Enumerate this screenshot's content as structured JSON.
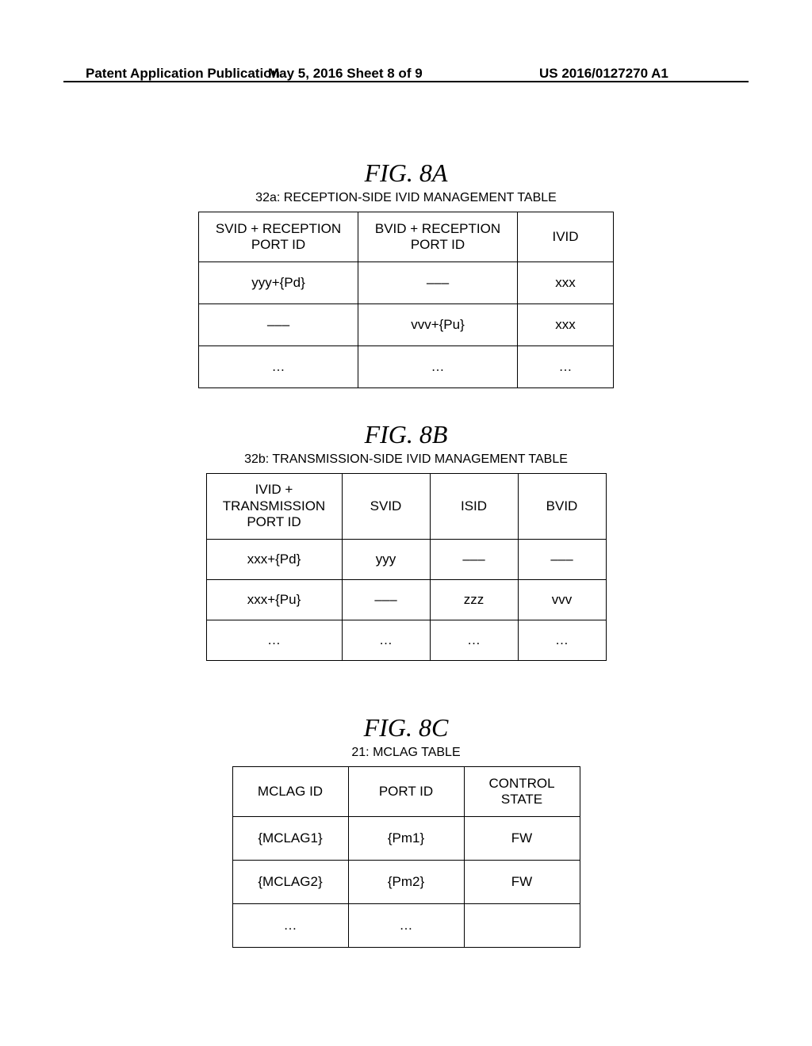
{
  "header": {
    "left": "Patent Application Publication",
    "center": "May 5, 2016  Sheet 8 of 9",
    "right": "US 2016/0127270 A1"
  },
  "figA": {
    "label": "FIG.  8A",
    "caption": "32a: RECEPTION-SIDE IVID MANAGEMENT TABLE",
    "headers": {
      "c1a": "SVID + RECEPTION",
      "c1b": "PORT ID",
      "c2a": "BVID + RECEPTION",
      "c2b": "PORT ID",
      "c3": "IVID"
    },
    "rows": [
      {
        "c1": "yyy+{Pd}",
        "c2": "–––",
        "c3": "xxx"
      },
      {
        "c1": "–––",
        "c2": "vvv+{Pu}",
        "c3": "xxx"
      },
      {
        "c1": "…",
        "c2": "…",
        "c3": "…"
      }
    ]
  },
  "figB": {
    "label": "FIG.  8B",
    "caption": "32b: TRANSMISSION-SIDE IVID MANAGEMENT TABLE",
    "headers": {
      "c1a": "IVID +",
      "c1b": "TRANSMISSION",
      "c1c": "PORT ID",
      "c2": "SVID",
      "c3": "ISID",
      "c4": "BVID"
    },
    "rows": [
      {
        "c1": "xxx+{Pd}",
        "c2": "yyy",
        "c3": "–––",
        "c4": "–––"
      },
      {
        "c1": "xxx+{Pu}",
        "c2": "–––",
        "c3": "zzz",
        "c4": "vvv"
      },
      {
        "c1": "…",
        "c2": "…",
        "c3": "…",
        "c4": "…"
      }
    ]
  },
  "figC": {
    "label": "FIG.  8C",
    "caption": "21: MCLAG TABLE",
    "headers": {
      "c1": "MCLAG ID",
      "c2": "PORT ID",
      "c3a": "CONTROL",
      "c3b": "STATE"
    },
    "rows": [
      {
        "c1": "{MCLAG1}",
        "c2": "{Pm1}",
        "c3": "FW"
      },
      {
        "c1": "{MCLAG2}",
        "c2": "{Pm2}",
        "c3": "FW"
      },
      {
        "c1": "…",
        "c2": "…",
        "c3": ""
      }
    ]
  }
}
